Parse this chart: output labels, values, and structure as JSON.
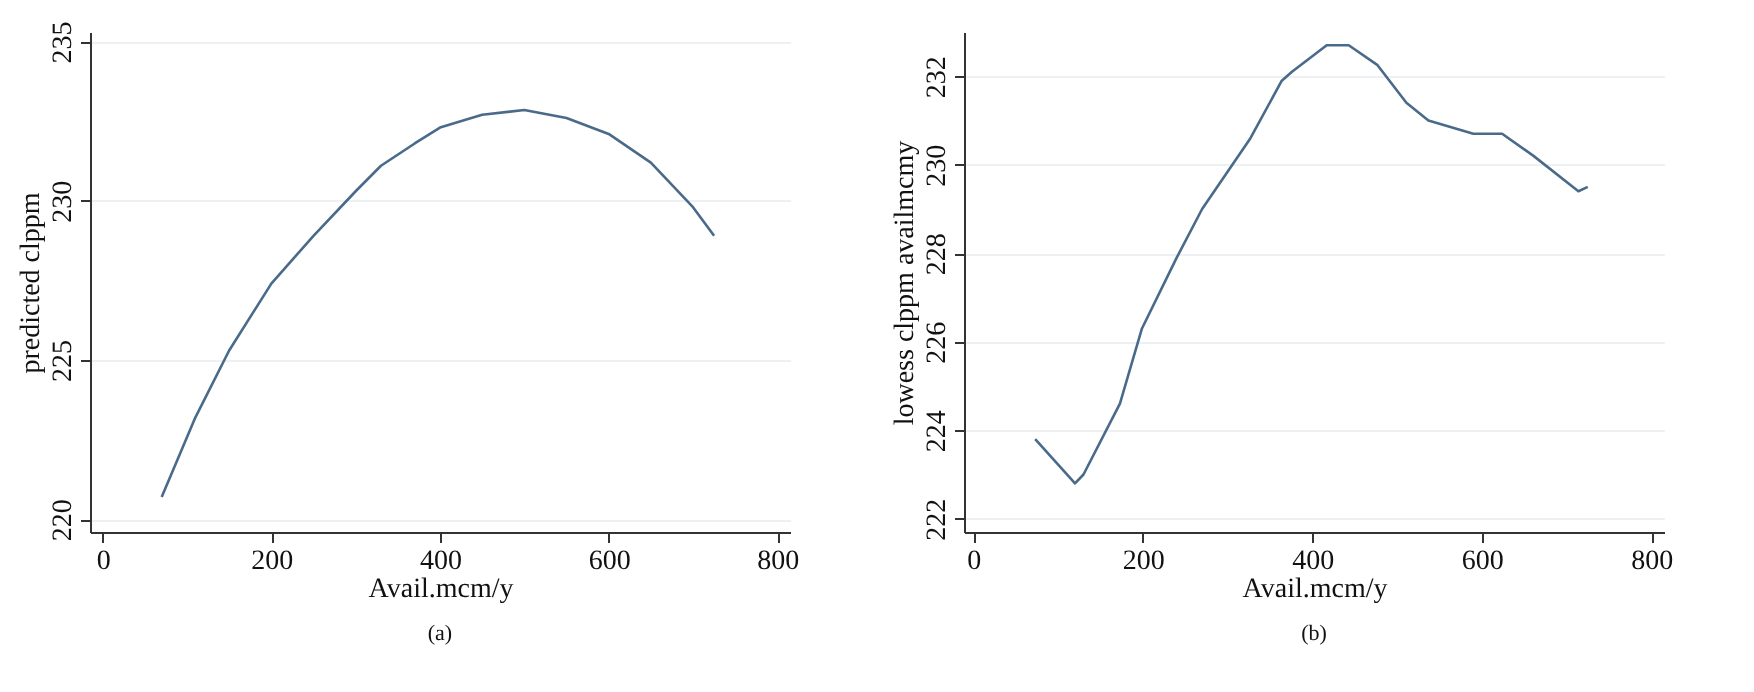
{
  "chart_data": [
    {
      "type": "line",
      "title": "(a)",
      "xlabel": "Avail.mcm/y",
      "ylabel": "predicted clppm",
      "x": [
        70,
        110,
        150,
        200,
        250,
        300,
        330,
        370,
        400,
        450,
        500,
        550,
        600,
        650,
        700,
        725
      ],
      "series": [
        {
          "color": "#4a6a8a",
          "values": [
            220.7,
            223.2,
            225.3,
            227.4,
            228.9,
            230.3,
            231.1,
            231.8,
            232.3,
            232.7,
            232.85,
            232.6,
            232.1,
            231.2,
            229.8,
            228.9
          ]
        }
      ],
      "xlim": [
        -15,
        815
      ],
      "xticks": [
        0,
        200,
        400,
        600,
        800
      ],
      "ylim": [
        219.6,
        235.3
      ],
      "yticks": [
        220,
        225,
        230,
        235
      ],
      "grid": "y"
    },
    {
      "type": "line",
      "title": "(b)",
      "xlabel": "Avail.mcm/y",
      "ylabel": "lowess clppm availmcmy",
      "x": [
        73,
        120,
        130,
        173,
        199,
        240,
        270,
        327,
        364,
        376,
        417,
        443,
        477,
        511,
        537,
        590,
        624,
        661,
        714,
        725
      ],
      "series": [
        {
          "color": "#4a6a8a",
          "values": [
            223.8,
            222.8,
            223.0,
            224.6,
            226.3,
            227.9,
            229.0,
            230.6,
            231.9,
            232.1,
            232.7,
            232.7,
            232.25,
            231.4,
            231.0,
            230.7,
            230.7,
            230.2,
            229.4,
            229.5
          ]
        }
      ],
      "xlim": [
        -11,
        815
      ],
      "xticks": [
        0,
        200,
        400,
        600,
        800
      ],
      "ylim": [
        221.7,
        233.0
      ],
      "yticks": [
        222,
        224,
        226,
        228,
        230,
        232
      ],
      "grid": "y"
    }
  ]
}
